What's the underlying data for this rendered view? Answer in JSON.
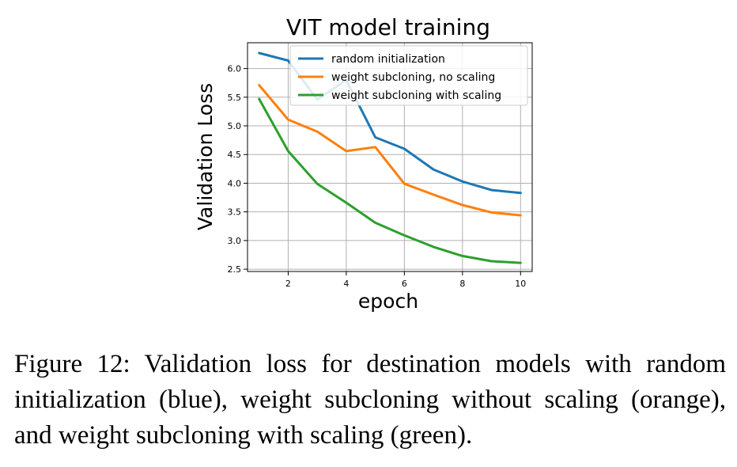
{
  "caption": "Figure 12: Validation loss for destination models with random initialization (blue), weight subcloning without scaling (orange), and weight subcloning with scaling (green).",
  "chart_data": {
    "type": "line",
    "title": "VIT model training",
    "xlabel": "epoch",
    "ylabel": "Validation Loss",
    "x": [
      1,
      2,
      3,
      4,
      5,
      6,
      7,
      8,
      9,
      10
    ],
    "xlim": [
      0.6,
      10.4
    ],
    "ylim": [
      2.46,
      6.45
    ],
    "xticks": [
      2,
      4,
      6,
      8,
      10
    ],
    "yticks": [
      2.5,
      3.0,
      3.5,
      4.0,
      4.5,
      5.0,
      5.5,
      6.0
    ],
    "ytick_labels": [
      "2.5",
      "3.0",
      "3.5",
      "4.0",
      "4.5",
      "5.0",
      "5.5",
      "6.0"
    ],
    "grid": true,
    "legend_position": "upper-right",
    "series": [
      {
        "name": "random initialization",
        "color": "#1f77b4",
        "values": [
          6.27,
          6.14,
          5.46,
          5.8,
          4.8,
          4.6,
          4.24,
          4.03,
          3.88,
          3.83
        ]
      },
      {
        "name": "weight subcloning, no scaling",
        "color": "#ff7f0e",
        "values": [
          5.71,
          5.11,
          4.9,
          4.56,
          4.63,
          3.99,
          3.8,
          3.62,
          3.49,
          3.44
        ]
      },
      {
        "name": "weight subcloning with scaling",
        "color": "#2ca02c",
        "values": [
          5.47,
          4.56,
          3.99,
          3.66,
          3.31,
          3.09,
          2.89,
          2.73,
          2.64,
          2.61
        ]
      }
    ]
  }
}
